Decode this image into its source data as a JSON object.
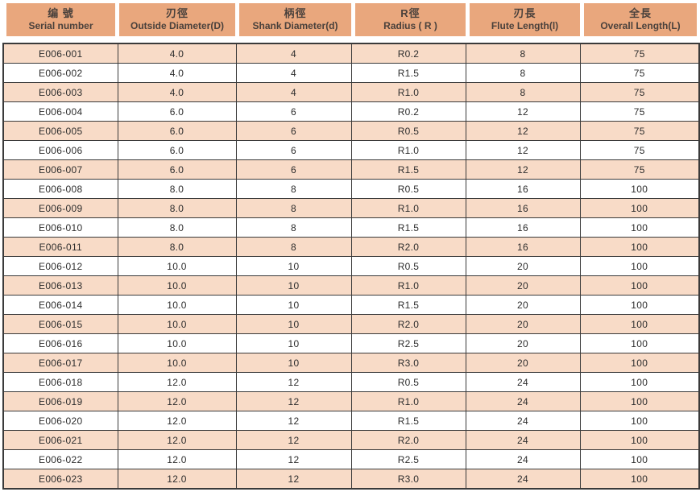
{
  "colors": {
    "header_bg": "#E9A77D",
    "stripe_bg": "#F8DBC7",
    "plain_bg": "#FFFFFF",
    "border": "#3A3A3A",
    "header_text": "#4A413C",
    "body_text": "#2D2D2D"
  },
  "table": {
    "columns": [
      {
        "zh": "编 號",
        "en": "Serial number"
      },
      {
        "zh": "刃徑",
        "en": "Outside Diameter(D)"
      },
      {
        "zh": "柄徑",
        "en": "Shank Diameter(d)"
      },
      {
        "zh": "R徑",
        "en": "Radius ( R )"
      },
      {
        "zh": "刃長",
        "en": "Flute Length(l)"
      },
      {
        "zh": "全長",
        "en": "Overall Length(L)"
      }
    ],
    "rows": [
      [
        "E006-001",
        "4.0",
        "4",
        "R0.2",
        "8",
        "75"
      ],
      [
        "E006-002",
        "4.0",
        "4",
        "R1.5",
        "8",
        "75"
      ],
      [
        "E006-003",
        "4.0",
        "4",
        "R1.0",
        "8",
        "75"
      ],
      [
        "E006-004",
        "6.0",
        "6",
        "R0.2",
        "12",
        "75"
      ],
      [
        "E006-005",
        "6.0",
        "6",
        "R0.5",
        "12",
        "75"
      ],
      [
        "E006-006",
        "6.0",
        "6",
        "R1.0",
        "12",
        "75"
      ],
      [
        "E006-007",
        "6.0",
        "6",
        "R1.5",
        "12",
        "75"
      ],
      [
        "E006-008",
        "8.0",
        "8",
        "R0.5",
        "16",
        "100"
      ],
      [
        "E006-009",
        "8.0",
        "8",
        "R1.0",
        "16",
        "100"
      ],
      [
        "E006-010",
        "8.0",
        "8",
        "R1.5",
        "16",
        "100"
      ],
      [
        "E006-011",
        "8.0",
        "8",
        "R2.0",
        "16",
        "100"
      ],
      [
        "E006-012",
        "10.0",
        "10",
        "R0.5",
        "20",
        "100"
      ],
      [
        "E006-013",
        "10.0",
        "10",
        "R1.0",
        "20",
        "100"
      ],
      [
        "E006-014",
        "10.0",
        "10",
        "R1.5",
        "20",
        "100"
      ],
      [
        "E006-015",
        "10.0",
        "10",
        "R2.0",
        "20",
        "100"
      ],
      [
        "E006-016",
        "10.0",
        "10",
        "R2.5",
        "20",
        "100"
      ],
      [
        "E006-017",
        "10.0",
        "10",
        "R3.0",
        "20",
        "100"
      ],
      [
        "E006-018",
        "12.0",
        "12",
        "R0.5",
        "24",
        "100"
      ],
      [
        "E006-019",
        "12.0",
        "12",
        "R1.0",
        "24",
        "100"
      ],
      [
        "E006-020",
        "12.0",
        "12",
        "R1.5",
        "24",
        "100"
      ],
      [
        "E006-021",
        "12.0",
        "12",
        "R2.0",
        "24",
        "100"
      ],
      [
        "E006-022",
        "12.0",
        "12",
        "R2.5",
        "24",
        "100"
      ],
      [
        "E006-023",
        "12.0",
        "12",
        "R3.0",
        "24",
        "100"
      ]
    ]
  }
}
